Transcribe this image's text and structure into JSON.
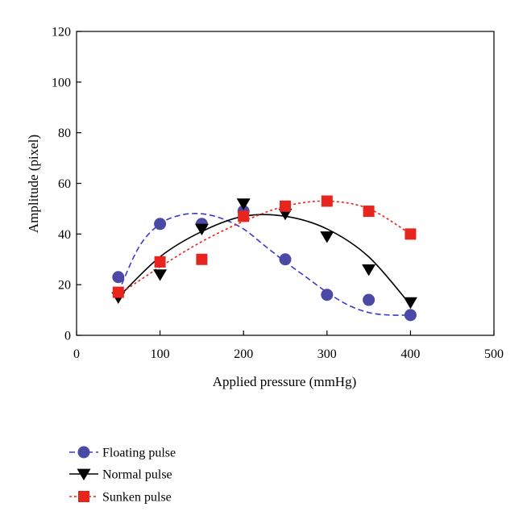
{
  "chart_data": {
    "type": "scatter",
    "title": "",
    "xlabel": "Applied pressure (mmHg)",
    "ylabel": "Amplitude (pixel)",
    "xlim": [
      0,
      500
    ],
    "ylim": [
      0,
      120
    ],
    "xticks": [
      0,
      100,
      200,
      300,
      400,
      500
    ],
    "yticks": [
      0,
      20,
      40,
      60,
      80,
      100,
      120
    ],
    "grid": false,
    "legend": "bottom-left, below plot",
    "series": [
      {
        "name": "Floating pulse",
        "marker": "circle",
        "color": "#4a4aa6",
        "line_color": "#3a3acc",
        "line_style": "dashed",
        "x": [
          50,
          100,
          150,
          200,
          250,
          300,
          350,
          400
        ],
        "y": [
          23,
          44,
          44,
          49,
          30,
          16,
          14,
          8
        ],
        "fit_x": [
          50,
          75,
          100,
          125,
          150,
          175,
          200,
          225,
          250,
          275,
          300,
          325,
          350,
          375,
          400
        ],
        "fit_y": [
          17,
          35,
          44,
          47.5,
          48,
          46,
          42,
          35.5,
          29,
          23,
          17,
          12,
          9,
          8,
          8
        ]
      },
      {
        "name": "Normal pulse",
        "marker": "triangle-down",
        "color": "#000000",
        "line_color": "#000000",
        "line_style": "solid",
        "x": [
          50,
          100,
          150,
          200,
          250,
          300,
          350,
          400
        ],
        "y": [
          15,
          24,
          42,
          52,
          48,
          39,
          26,
          13
        ],
        "fit_x": [
          50,
          100,
          150,
          200,
          250,
          300,
          350,
          400
        ],
        "fit_y": [
          15,
          31,
          41,
          47,
          47,
          42,
          31,
          12
        ]
      },
      {
        "name": "Sunken pulse",
        "marker": "square",
        "color": "#e8241e",
        "line_color": "#e8241e",
        "line_style": "dotted",
        "x": [
          50,
          100,
          150,
          200,
          250,
          300,
          350,
          400
        ],
        "y": [
          17,
          29,
          30,
          47,
          51,
          53,
          49,
          40
        ],
        "fit_x": [
          50,
          100,
          150,
          200,
          250,
          300,
          350,
          400
        ],
        "fit_y": [
          16,
          27,
          37,
          45,
          51,
          53,
          50,
          40
        ]
      }
    ]
  }
}
